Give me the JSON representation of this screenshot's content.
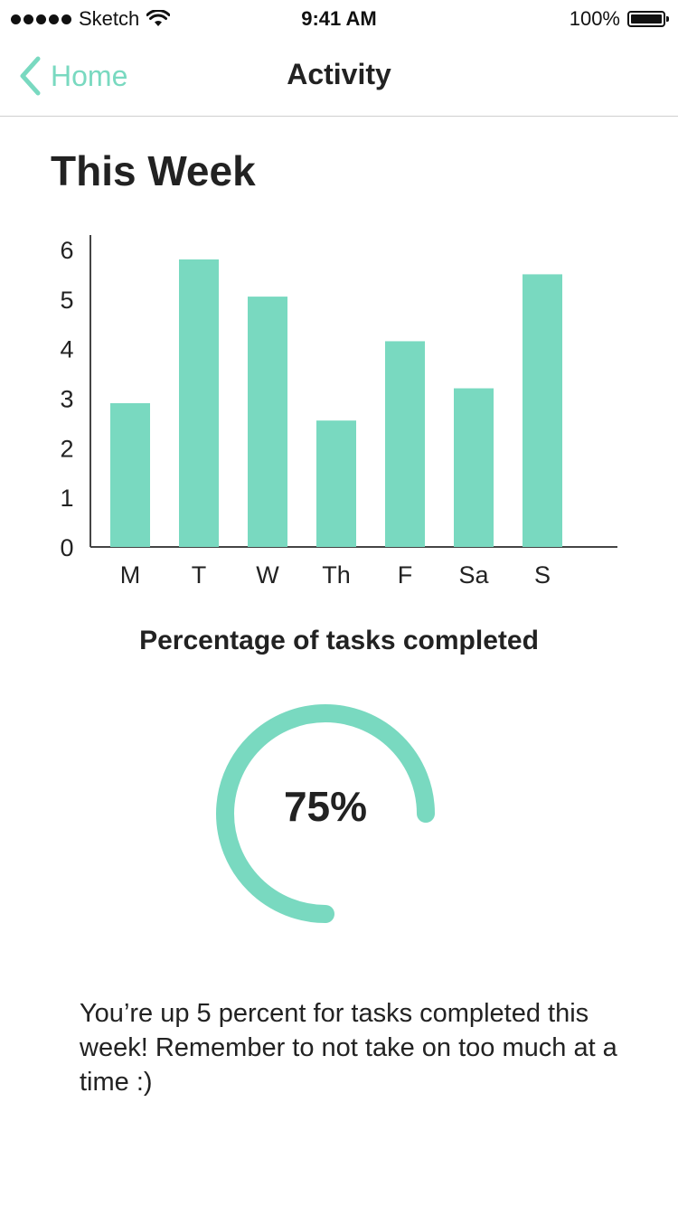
{
  "status_bar": {
    "carrier": "Sketch",
    "time": "9:41 AM",
    "battery": "100%"
  },
  "nav": {
    "back_label": "Home",
    "title": "Activity"
  },
  "section_title": "This Week",
  "chart_data": {
    "type": "bar",
    "categories": [
      "M",
      "T",
      "W",
      "Th",
      "F",
      "Sa",
      "S"
    ],
    "values": [
      2.9,
      5.8,
      5.05,
      2.55,
      4.15,
      3.2,
      5.5
    ],
    "ylim": [
      0,
      6
    ],
    "yticks": [
      0,
      1,
      2,
      3,
      4,
      5,
      6
    ],
    "title": "",
    "xlabel": "",
    "ylabel": "",
    "grid": false,
    "color": "#79d9c0"
  },
  "progress": {
    "label": "Percentage of tasks completed",
    "value_text": "75%",
    "fraction": 0.75,
    "color": "#79d9c0"
  },
  "message": "You’re up 5 percent for tasks completed this week! Remember to not take on too much at a time :)"
}
